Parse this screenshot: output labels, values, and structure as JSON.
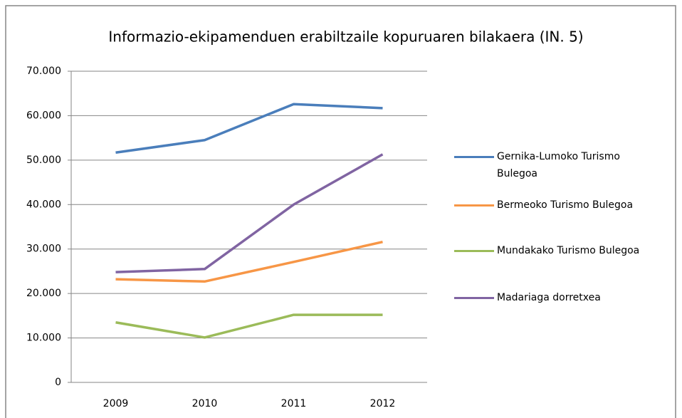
{
  "chart_data": {
    "type": "line",
    "title": "Informazio-ekipamenduen erabiltzaile kopuruaren bilakaera (IN. 5)",
    "categories": [
      "2009",
      "2010",
      "2011",
      "2012"
    ],
    "series": [
      {
        "name": "Gernika-Lumoko Turismo Bulegoa",
        "color": "#4a7ebb",
        "values": [
          51700,
          54500,
          62600,
          61700
        ]
      },
      {
        "name": "Bermeoko Turismo Bulegoa",
        "color": "#f79646",
        "values": [
          23200,
          22700,
          27100,
          31600
        ]
      },
      {
        "name": "Mundakako Turismo Bulegoa",
        "color": "#9bbb59",
        "values": [
          13500,
          10100,
          15200,
          15200
        ]
      },
      {
        "name": "Madariaga dorretxea",
        "color": "#8064a2",
        "values": [
          24800,
          25500,
          40000,
          51300
        ]
      }
    ],
    "ylim": [
      0,
      70000
    ],
    "yticks": [
      0,
      {
        "value": 10000,
        "label": "10.000"
      },
      {
        "value": 20000,
        "label": "20.000"
      },
      {
        "value": 30000,
        "label": "30.000"
      },
      {
        "value": 40000,
        "label": "40.000"
      },
      {
        "value": 50000,
        "label": "50.000"
      },
      {
        "value": 60000,
        "label": "60.000"
      },
      {
        "value": 70000,
        "label": "70.000"
      }
    ],
    "grid": true
  }
}
